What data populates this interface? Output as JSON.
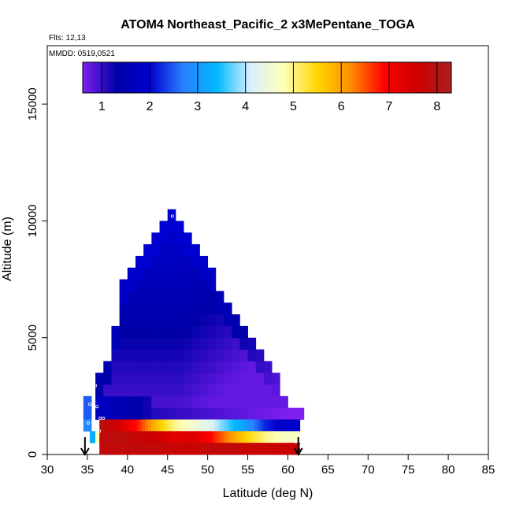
{
  "chart_data": {
    "type": "heatmap",
    "title": "ATOM4 Northeast_Pacific_2 x3MePentane_TOGA",
    "flights_label": "Flts: 12,13",
    "dates_label": "MMDD: 0519,0521",
    "xlabel": "Latitude (deg N)",
    "ylabel": "Altitude (m)",
    "xlim": [
      30,
      85
    ],
    "ylim": [
      0,
      17500
    ],
    "x_ticks": [
      30,
      35,
      40,
      45,
      50,
      55,
      60,
      65,
      70,
      75,
      80,
      85
    ],
    "y_ticks": [
      0,
      5000,
      10000,
      15000
    ],
    "grid": false,
    "colorbar": {
      "placement": "top",
      "range": [
        0.6,
        8.3
      ],
      "ticks": [
        1,
        2,
        3,
        4,
        5,
        6,
        7,
        8
      ],
      "colors": [
        "#7f1ff0",
        "#0000a8",
        "#0000d0",
        "#2a80ff",
        "#00b8ff",
        "#d8f0ff",
        "#ffffb8",
        "#ffd700",
        "#ff8c00",
        "#ff0000",
        "#cc0000",
        "#a82020"
      ]
    },
    "bins": {
      "altitude_bin_m": 500,
      "latitude_bin_deg": 1,
      "profile_columns": [
        {
          "lat_start": 36,
          "lat_end": 37,
          "alt_start": 3000,
          "alt_end": 3500,
          "value": 1.2
        },
        {
          "lat_start": 37,
          "lat_end": 38,
          "alt_start": 3500,
          "alt_end": 4000,
          "value": 1.1
        },
        {
          "lat_start": 38,
          "lat_end": 39,
          "alt_start": 5000,
          "alt_end": 5500,
          "value": 0.9
        },
        {
          "lat_start": 39,
          "lat_end": 40,
          "alt_start": 7000,
          "alt_end": 7500,
          "value": 0.8
        },
        {
          "lat_start": 40,
          "lat_end": 41,
          "alt_start": 7500,
          "alt_end": 8000,
          "value": 1.1
        },
        {
          "lat_start": 41,
          "lat_end": 42,
          "alt_start": 8000,
          "alt_end": 8500,
          "value": 1.3
        },
        {
          "lat_start": 42,
          "lat_end": 43,
          "alt_start": 8500,
          "alt_end": 9000,
          "value": 1.6
        },
        {
          "lat_start": 43,
          "lat_end": 44,
          "alt_start": 9000,
          "alt_end": 9500,
          "value": 1.7
        },
        {
          "lat_start": 44,
          "lat_end": 45,
          "alt_start": 9500,
          "alt_end": 10000,
          "value": 1.8
        },
        {
          "lat_start": 45,
          "lat_end": 46,
          "alt_start": 10000,
          "alt_end": 10500,
          "value": 1.9
        }
      ]
    },
    "surface_layers": [
      {
        "alt_start": 1000,
        "alt_end": 1500,
        "lat_start": 36.5,
        "lat_end": 61.5,
        "values": [
          7.9,
          7.5,
          6.8,
          5.8,
          5.0,
          4.6,
          4.2,
          3.6,
          3.0,
          2.2,
          1.9
        ]
      },
      {
        "alt_start": 500,
        "alt_end": 1000,
        "lat_start": 36.5,
        "lat_end": 61.5,
        "values": [
          7.8,
          7.9,
          7.7,
          7.6,
          7.3,
          7.4,
          6.9,
          6.2,
          5.5,
          5.0,
          4.7
        ]
      },
      {
        "alt_start": 0,
        "alt_end": 500,
        "lat_start": 36.5,
        "lat_end": 61.5,
        "values": [
          7.8,
          7.8,
          7.8,
          7.8,
          7.7,
          7.7,
          7.8,
          7.8,
          7.7,
          7.7,
          7.6
        ]
      }
    ],
    "left_edge_cells": [
      {
        "lat_start": 34.5,
        "lat_end": 35.5,
        "alt_start": 1500,
        "alt_end": 2500,
        "value": 2.5
      },
      {
        "lat_start": 34.5,
        "lat_end": 35.5,
        "alt_start": 1000,
        "alt_end": 1500,
        "value": 2.8
      },
      {
        "lat_start": 35.3,
        "lat_end": 36.0,
        "alt_start": 500,
        "alt_end": 1000,
        "value": 3.3
      },
      {
        "lat_start": 36.0,
        "lat_end": 36.6,
        "alt_start": 500,
        "alt_end": 1000,
        "value": 4.8
      }
    ],
    "markers": {
      "arrows_lat": [
        34.7,
        61.3
      ],
      "points": [
        {
          "lat": 45.6,
          "alt": 10200
        },
        {
          "lat": 37.9,
          "alt": 7100
        },
        {
          "lat": 35.5,
          "alt": 3050
        },
        {
          "lat": 36.0,
          "alt": 2950
        },
        {
          "lat": 35.3,
          "alt": 2150
        },
        {
          "lat": 36.2,
          "alt": 2050
        },
        {
          "lat": 36.6,
          "alt": 1550
        },
        {
          "lat": 37.0,
          "alt": 1550
        },
        {
          "lat": 35.1,
          "alt": 1350
        },
        {
          "lat": 36.5,
          "alt": 1000
        },
        {
          "lat": 36.3,
          "alt": 450
        },
        {
          "lat": 61.0,
          "alt": 550
        },
        {
          "lat": 61.4,
          "alt": 350
        }
      ]
    }
  }
}
